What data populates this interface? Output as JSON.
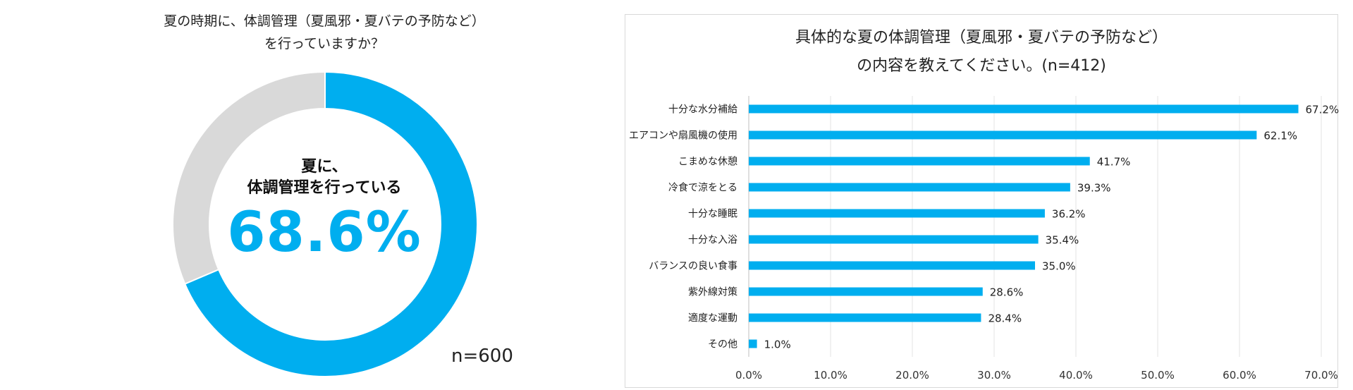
{
  "donut": {
    "title_line1": "夏の時期に、体調管理（夏風邪・夏バテの予防など）",
    "title_line2": "を行っていますか？",
    "center_line1": "夏に、",
    "center_line2": "体調管理を行っている",
    "center_value": "68.6%",
    "n_label": "n=600"
  },
  "bar": {
    "title_line1": "具体的な夏の体調管理（夏風邪・夏バテの予防など）",
    "title_line2": "の内容を教えてください。(n=412)"
  },
  "chart_data": [
    {
      "type": "pie",
      "donut": true,
      "title": "夏の時期に、体調管理（夏風邪・夏バテの予防など）を行っていますか？",
      "slices": [
        {
          "label": "夏に、体調管理を行っている",
          "value": 68.6,
          "color": "#00AEEF"
        },
        {
          "label": "",
          "value": 31.4,
          "color": "#D9D9D9"
        }
      ]
    },
    {
      "type": "bar",
      "orientation": "horizontal",
      "title": "具体的な夏の体調管理（夏風邪・夏バテの予防など）の内容を教えてください。(n=412)",
      "categories": [
        "十分な水分補給",
        "エアコンや扇風機の使用",
        "こまめな休憩",
        "冷食で涼をとる",
        "十分な睡眠",
        "十分な入浴",
        "バランスの良い食事",
        "紫外線対策",
        "適度な運動",
        "その他"
      ],
      "values": [
        67.2,
        62.1,
        41.7,
        39.3,
        36.2,
        35.4,
        35.0,
        28.6,
        28.4,
        1.0
      ],
      "value_labels": [
        "67.2%",
        "62.1%",
        "41.7%",
        "39.3%",
        "36.2%",
        "35.4%",
        "35.0%",
        "28.6%",
        "28.4%",
        "1.0%"
      ],
      "xlim": [
        0,
        70
      ],
      "ticks": [
        0,
        10,
        20,
        30,
        40,
        50,
        60,
        70
      ],
      "tick_labels": [
        "0.0%",
        "10.0%",
        "20.0%",
        "30.0%",
        "40.0%",
        "50.0%",
        "60.0%",
        "70.0%"
      ],
      "grid": true,
      "color": "#00AEEF"
    }
  ]
}
